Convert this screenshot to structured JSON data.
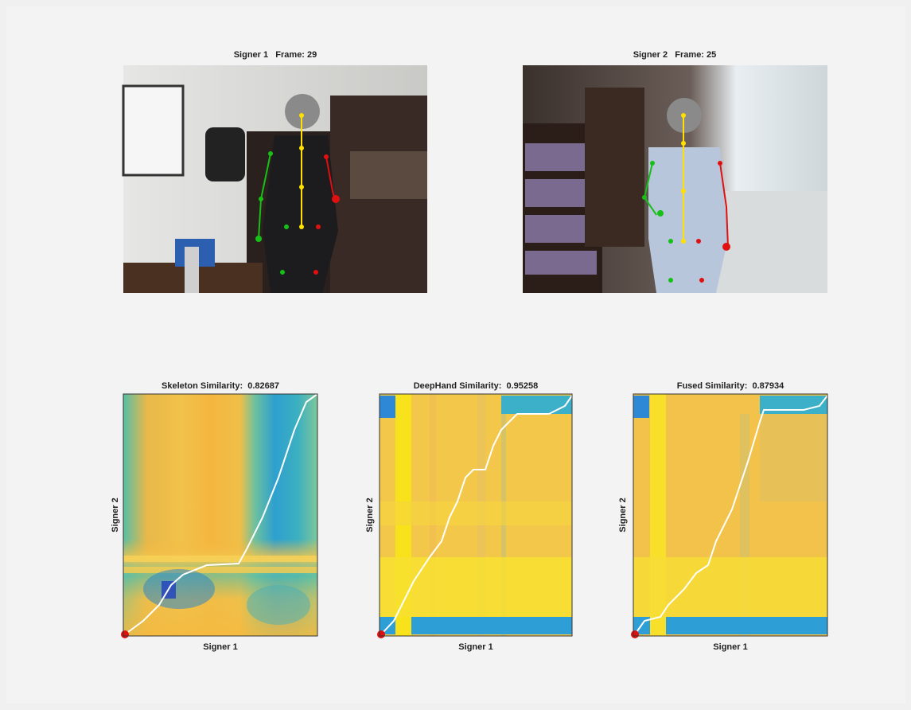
{
  "panels": [
    {
      "title": "Signer 1   Frame: 29"
    },
    {
      "title": "Signer 2   Frame: 25"
    }
  ],
  "plots": [
    {
      "title": "Skeleton Similarity:  0.82687",
      "xlabel": "Signer 1",
      "ylabel": "Signer 2"
    },
    {
      "title": "DeepHand Similarity:  0.95258",
      "xlabel": "Signer 1",
      "ylabel": "Signer 2"
    },
    {
      "title": "Fused Similarity:  0.87934",
      "xlabel": "Signer 1",
      "ylabel": "Signer 2"
    }
  ]
}
